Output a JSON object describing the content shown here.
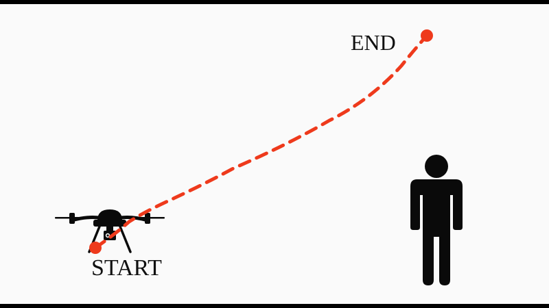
{
  "labels": {
    "start": "START",
    "end": "END"
  },
  "icons": {
    "drone": "drone-icon",
    "person": "person-icon"
  },
  "colors": {
    "path": "#ee3a1c",
    "figure": "#0a0a0a",
    "background": "#fafafa",
    "letterbox": "#000000"
  }
}
